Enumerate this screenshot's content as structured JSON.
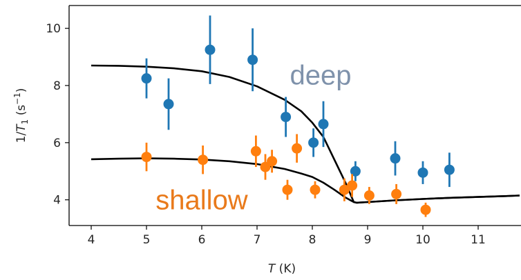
{
  "chart_data": {
    "type": "scatter",
    "xlabel_italic": "T",
    "xlabel_unit": " (K)",
    "ylabel_parts": {
      "one": "1/",
      "T": "T",
      "sub": "1",
      "unit_open": " (s",
      "sup": "−1",
      "unit_close": ")"
    },
    "xlim": [
      3.6,
      11.8
    ],
    "ylim": [
      3.1,
      10.8
    ],
    "xticks": [
      4,
      5,
      6,
      7,
      8,
      9,
      10,
      11
    ],
    "yticks": [
      4,
      6,
      8,
      10
    ],
    "grid": false,
    "series": [
      {
        "name": "deep",
        "color": "#1f77b4",
        "label_color": "#7f92ab",
        "points": [
          {
            "x": 5.0,
            "y": 8.25,
            "err": 0.7
          },
          {
            "x": 5.4,
            "y": 7.35,
            "err": 0.9
          },
          {
            "x": 6.15,
            "y": 9.25,
            "err": 1.2
          },
          {
            "x": 6.92,
            "y": 8.9,
            "err": 1.1
          },
          {
            "x": 7.52,
            "y": 6.9,
            "err": 0.7
          },
          {
            "x": 8.02,
            "y": 6.0,
            "err": 0.5
          },
          {
            "x": 8.2,
            "y": 6.65,
            "err": 0.8
          },
          {
            "x": 8.78,
            "y": 5.0,
            "err": 0.35
          },
          {
            "x": 9.5,
            "y": 5.45,
            "err": 0.6
          },
          {
            "x": 10.0,
            "y": 4.95,
            "err": 0.4
          },
          {
            "x": 10.48,
            "y": 5.05,
            "err": 0.6
          }
        ]
      },
      {
        "name": "shallow",
        "color": "#ff7f0e",
        "label_color": "#e97a1b",
        "points": [
          {
            "x": 5.0,
            "y": 5.5,
            "err": 0.5
          },
          {
            "x": 6.02,
            "y": 5.4,
            "err": 0.5
          },
          {
            "x": 6.98,
            "y": 5.7,
            "err": 0.55
          },
          {
            "x": 7.15,
            "y": 5.15,
            "err": 0.45
          },
          {
            "x": 7.27,
            "y": 5.35,
            "err": 0.4
          },
          {
            "x": 7.55,
            "y": 4.35,
            "err": 0.35
          },
          {
            "x": 7.72,
            "y": 5.8,
            "err": 0.5
          },
          {
            "x": 8.05,
            "y": 4.35,
            "err": 0.3
          },
          {
            "x": 8.58,
            "y": 4.35,
            "err": 0.4
          },
          {
            "x": 8.72,
            "y": 4.5,
            "err": 0.4
          },
          {
            "x": 9.03,
            "y": 4.15,
            "err": 0.3
          },
          {
            "x": 9.52,
            "y": 4.2,
            "err": 0.35
          },
          {
            "x": 10.05,
            "y": 3.65,
            "err": 0.25
          }
        ]
      }
    ],
    "fits": [
      {
        "color": "#000000",
        "points": [
          [
            4.0,
            8.7
          ],
          [
            4.5,
            8.69
          ],
          [
            5.0,
            8.66
          ],
          [
            5.5,
            8.6
          ],
          [
            6.0,
            8.5
          ],
          [
            6.5,
            8.3
          ],
          [
            7.0,
            7.97
          ],
          [
            7.5,
            7.5
          ],
          [
            7.8,
            7.1
          ],
          [
            8.0,
            6.7
          ],
          [
            8.2,
            6.2
          ],
          [
            8.3,
            5.8
          ],
          [
            8.45,
            5.2
          ],
          [
            8.6,
            4.6
          ],
          [
            8.75,
            3.92
          ],
          [
            8.8,
            3.9
          ],
          [
            9.0,
            3.92
          ],
          [
            9.5,
            3.98
          ],
          [
            10.0,
            4.03
          ],
          [
            10.5,
            4.07
          ],
          [
            11.0,
            4.1
          ],
          [
            11.5,
            4.13
          ],
          [
            11.75,
            4.15
          ]
        ]
      },
      {
        "color": "#000000",
        "points": [
          [
            4.0,
            5.42
          ],
          [
            4.5,
            5.44
          ],
          [
            5.0,
            5.45
          ],
          [
            5.5,
            5.44
          ],
          [
            6.0,
            5.41
          ],
          [
            6.5,
            5.35
          ],
          [
            7.0,
            5.25
          ],
          [
            7.5,
            5.08
          ],
          [
            7.8,
            4.92
          ],
          [
            8.0,
            4.8
          ],
          [
            8.2,
            4.6
          ],
          [
            8.4,
            4.35
          ],
          [
            8.6,
            4.08
          ],
          [
            8.75,
            3.92
          ],
          [
            8.8,
            3.9
          ],
          [
            9.0,
            3.92
          ],
          [
            9.5,
            3.98
          ],
          [
            10.0,
            4.03
          ],
          [
            10.5,
            4.07
          ],
          [
            11.0,
            4.1
          ],
          [
            11.5,
            4.13
          ],
          [
            11.75,
            4.15
          ]
        ]
      }
    ],
    "annotations": [
      {
        "text": "deep",
        "series": "deep",
        "x": 8.15,
        "y": 8.38
      },
      {
        "text": "shallow",
        "series": "shallow",
        "x": 6.0,
        "y": 4.0
      }
    ]
  }
}
